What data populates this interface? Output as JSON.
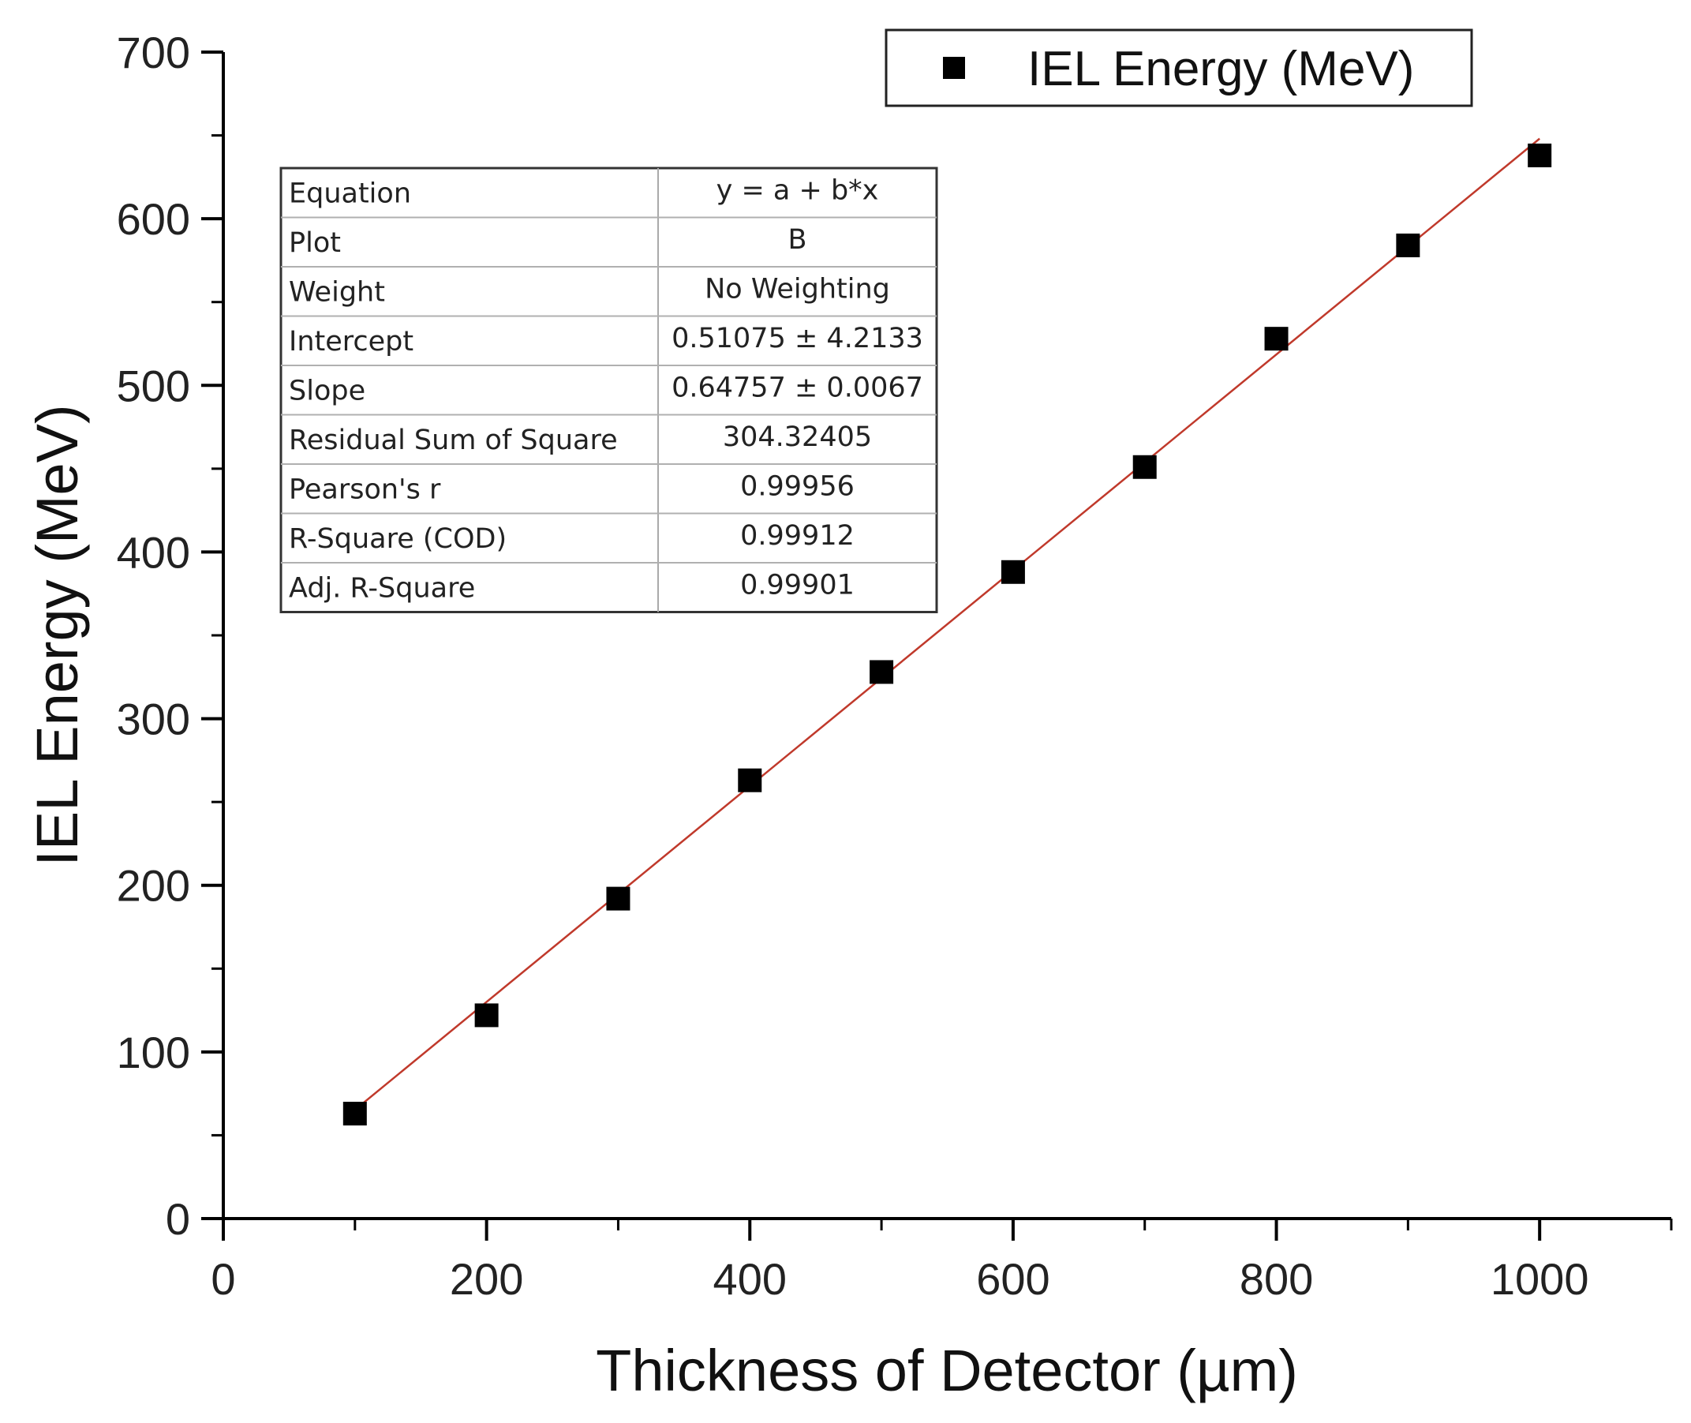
{
  "chart_data": {
    "type": "scatter",
    "title": "",
    "xlabel": "Thickness of Detector (µm)",
    "ylabel": "IEL Energy (MeV)",
    "xlim": [
      0,
      1100
    ],
    "ylim": [
      0,
      700
    ],
    "x_ticks": [
      0,
      200,
      400,
      600,
      800,
      1000
    ],
    "y_ticks": [
      0,
      100,
      200,
      300,
      400,
      500,
      600,
      700
    ],
    "x_tick_labels": [
      "0",
      "200",
      "400",
      "600",
      "800",
      "1000"
    ],
    "y_tick_labels": [
      "0",
      "100",
      "200",
      "300",
      "400",
      "500",
      "600",
      "700"
    ],
    "series": [
      {
        "name": "IEL Energy (MeV)",
        "marker": "square",
        "color": "#000000",
        "x": [
          100,
          200,
          300,
          400,
          500,
          600,
          700,
          800,
          900,
          1000
        ],
        "y": [
          63,
          122,
          192,
          263,
          328,
          388,
          451,
          528,
          584,
          638
        ]
      }
    ],
    "fit": {
      "type": "linear",
      "color": "#c0392b",
      "intercept": 0.51075,
      "slope": 0.64757,
      "x_range": [
        100,
        1000
      ]
    },
    "legend": {
      "position": "top-right",
      "label": "IEL Energy (MeV)"
    },
    "fit_table": [
      {
        "key": "Equation",
        "value": "y = a + b*x"
      },
      {
        "key": "Plot",
        "value": "B"
      },
      {
        "key": "Weight",
        "value": "No Weighting"
      },
      {
        "key": "Intercept",
        "value": "0.51075 ± 4.2133"
      },
      {
        "key": "Slope",
        "value": "0.64757 ± 0.0067"
      },
      {
        "key": "Residual Sum of Square",
        "value": "304.32405"
      },
      {
        "key": "Pearson's r",
        "value": "0.99956"
      },
      {
        "key": "R-Square (COD)",
        "value": "0.99912"
      },
      {
        "key": "Adj. R-Square",
        "value": "0.99901"
      }
    ]
  }
}
